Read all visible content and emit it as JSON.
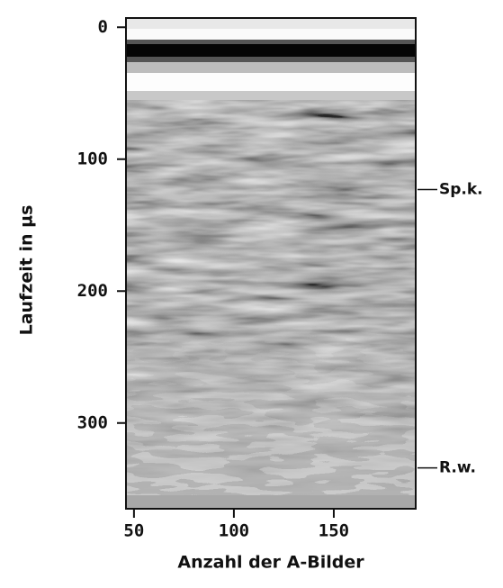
{
  "chart_data": {
    "type": "image",
    "x_label": "Anzahl der A-Bilder",
    "y_label": "Laufzeit in µs",
    "xlim": [
      46,
      191
    ],
    "xticks": [
      50,
      100,
      150
    ],
    "ylim": [
      -7,
      365
    ],
    "yticks": [
      0,
      100,
      200,
      300
    ],
    "y_inverted": true,
    "annotations": [
      {
        "label": "Sp.k.",
        "y": 123
      },
      {
        "label": "R.w.",
        "y": 334
      }
    ]
  }
}
